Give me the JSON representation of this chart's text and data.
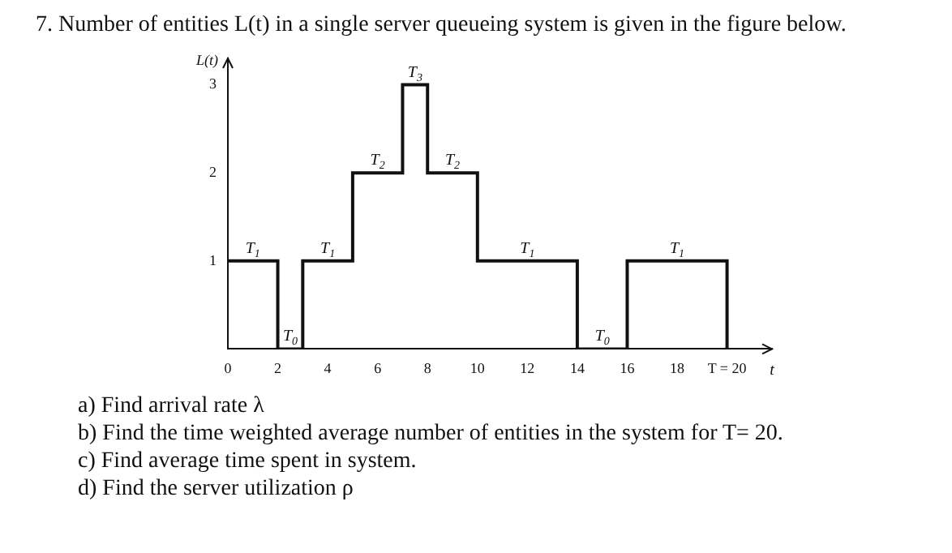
{
  "chart_data": {
    "type": "step",
    "title": "7.   Number of entities L(t) in a single server queueing system is given in the figure below.",
    "xlabel": "t",
    "ylabel": "L(t)",
    "x": [
      0,
      2,
      3,
      5,
      7,
      8,
      10,
      14,
      16,
      20
    ],
    "values": [
      1,
      0,
      1,
      2,
      3,
      2,
      1,
      0,
      1,
      0
    ],
    "color": "#111111",
    "xlim": [
      0,
      21.8
    ],
    "ylim": [
      0,
      3.3
    ],
    "xticks": [
      0,
      2,
      4,
      6,
      8,
      10,
      12,
      14,
      16,
      18,
      {
        "value": 20,
        "label": "T = 20"
      }
    ],
    "yticks": [
      1,
      2,
      3
    ],
    "grid": false,
    "legend": false,
    "marker": "none",
    "line_style": "solid",
    "annotations": [
      {
        "text": "T$_{1}$",
        "x": 1,
        "y": 1
      },
      {
        "text": "T$_{0}$",
        "x": 2.5,
        "y": 0
      },
      {
        "text": "T$_{1}$",
        "x": 4,
        "y": 1
      },
      {
        "text": "T$_{2}$",
        "x": 6,
        "y": 2
      },
      {
        "text": "T$_{3}$",
        "x": 7.5,
        "y": 3
      },
      {
        "text": "T$_{2}$",
        "x": 9,
        "y": 2
      },
      {
        "text": "T$_{1}$",
        "x": 12,
        "y": 1
      },
      {
        "text": "T$_{0}$",
        "x": 15,
        "y": 0
      },
      {
        "text": "T$_{1}$",
        "x": 18,
        "y": 1
      },
      "a)   Find arrival rate λ",
      "b)   Find the time weighted average number of entities in the system for T= 20.",
      "c)   Find average time spent in system.",
      "d)   Find the server utilization ρ"
    ]
  }
}
